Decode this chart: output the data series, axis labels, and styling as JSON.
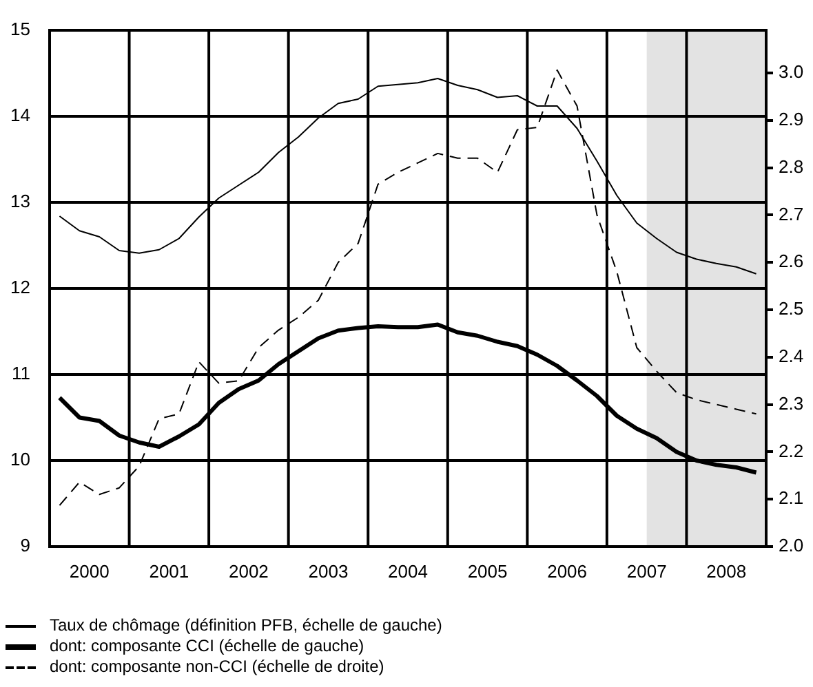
{
  "chart_data": {
    "type": "line",
    "x": [
      2000.125,
      2000.375,
      2000.625,
      2000.875,
      2001.125,
      2001.375,
      2001.625,
      2001.875,
      2002.125,
      2002.375,
      2002.625,
      2002.875,
      2003.125,
      2003.375,
      2003.625,
      2003.875,
      2004.125,
      2004.375,
      2004.625,
      2004.875,
      2005.125,
      2005.375,
      2005.625,
      2005.875,
      2006.125,
      2006.375,
      2006.625,
      2006.875,
      2007.125,
      2007.375,
      2007.625,
      2007.875,
      2008.125,
      2008.375,
      2008.625,
      2008.875
    ],
    "series": [
      {
        "name": "Taux de chômage (définition PFB, échelle de gauche)",
        "color": "#000000",
        "line_style": "solid",
        "values": [
          12.84,
          12.67,
          12.6,
          12.44,
          12.41,
          12.45,
          12.58,
          12.83,
          13.05,
          13.2,
          13.35,
          13.58,
          13.76,
          13.98,
          14.15,
          14.2,
          14.35,
          14.37,
          14.39,
          14.44,
          14.36,
          14.31,
          14.22,
          14.24,
          14.12,
          14.12,
          13.86,
          13.48,
          13.08,
          12.76,
          12.58,
          12.42,
          12.34,
          12.29,
          12.25,
          12.17
        ]
      },
      {
        "name": "dont: composante CCI (échelle de gauche)",
        "color": "#000000",
        "line_style": "solid",
        "values": [
          10.73,
          10.5,
          10.46,
          10.29,
          10.21,
          10.16,
          10.28,
          10.42,
          10.67,
          10.83,
          10.93,
          11.12,
          11.27,
          11.42,
          11.51,
          11.54,
          11.56,
          11.55,
          11.55,
          11.58,
          11.49,
          11.45,
          11.38,
          11.33,
          11.23,
          11.1,
          10.93,
          10.75,
          10.52,
          10.37,
          10.26,
          10.1,
          10.0,
          9.95,
          9.92,
          9.86
        ]
      },
      {
        "name": "dont: composante non-CCI (échelle de droite)",
        "color": "#000000",
        "line_style": "dashed",
        "axis": "y2",
        "values": [
          2.087,
          2.136,
          2.11,
          2.124,
          2.17,
          2.27,
          2.28,
          2.39,
          2.345,
          2.35,
          2.42,
          2.457,
          2.484,
          2.52,
          2.6,
          2.64,
          2.765,
          2.79,
          2.81,
          2.83,
          2.82,
          2.82,
          2.79,
          2.88,
          2.885,
          3.006,
          2.93,
          2.7,
          2.58,
          2.42,
          2.37,
          2.325,
          2.31,
          2.3,
          2.29,
          2.28
        ]
      }
    ],
    "xlim": [
      2000,
      2009
    ],
    "xticks": [
      {
        "value": 2000.5,
        "label": "2000"
      },
      {
        "value": 2001,
        "label": null
      },
      {
        "value": 2001.5,
        "label": "2001"
      },
      {
        "value": 2002,
        "label": null
      },
      {
        "value": 2002.5,
        "label": "2002"
      },
      {
        "value": 2003,
        "label": null
      },
      {
        "value": 2003.5,
        "label": "2003"
      },
      {
        "value": 2004,
        "label": null
      },
      {
        "value": 2004.5,
        "label": "2004"
      },
      {
        "value": 2005,
        "label": null
      },
      {
        "value": 2005.5,
        "label": "2005"
      },
      {
        "value": 2006,
        "label": null
      },
      {
        "value": 2006.5,
        "label": "2006"
      },
      {
        "value": 2007,
        "label": null
      },
      {
        "value": 2007.5,
        "label": "2007"
      },
      {
        "value": 2008,
        "label": null
      },
      {
        "value": 2008.5,
        "label": "2008"
      }
    ],
    "ylim": [
      9,
      15
    ],
    "yticks": [
      9,
      10,
      11,
      12,
      13,
      14,
      15
    ],
    "y2lim": [
      2.0,
      3.09
    ],
    "y2ticks": [
      {
        "value": 2,
        "label": "2.0"
      },
      2.1,
      2.2,
      2.3,
      2.4,
      2.5,
      2.6,
      2.7,
      2.8,
      2.9,
      {
        "value": 3,
        "label": "3.0"
      }
    ],
    "bands": [
      {
        "axis": "x",
        "from": 2007.5,
        "to": 2009,
        "color": "#e3e3e3"
      }
    ],
    "grid": true,
    "legend": "bottom",
    "marker": "none"
  }
}
